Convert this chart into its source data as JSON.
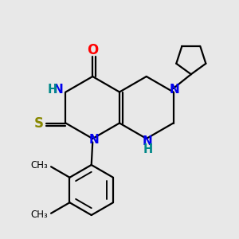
{
  "bg_color": "#e8e8e8",
  "bond_color": "#000000",
  "N_color": "#0000ee",
  "O_color": "#ff0000",
  "S_color": "#888800",
  "H_color": "#008888",
  "line_width": 1.6,
  "font_size": 11.0,
  "xlim": [
    0,
    10
  ],
  "ylim": [
    0,
    10
  ],
  "figsize": [
    3.0,
    3.0
  ],
  "dpi": 100
}
